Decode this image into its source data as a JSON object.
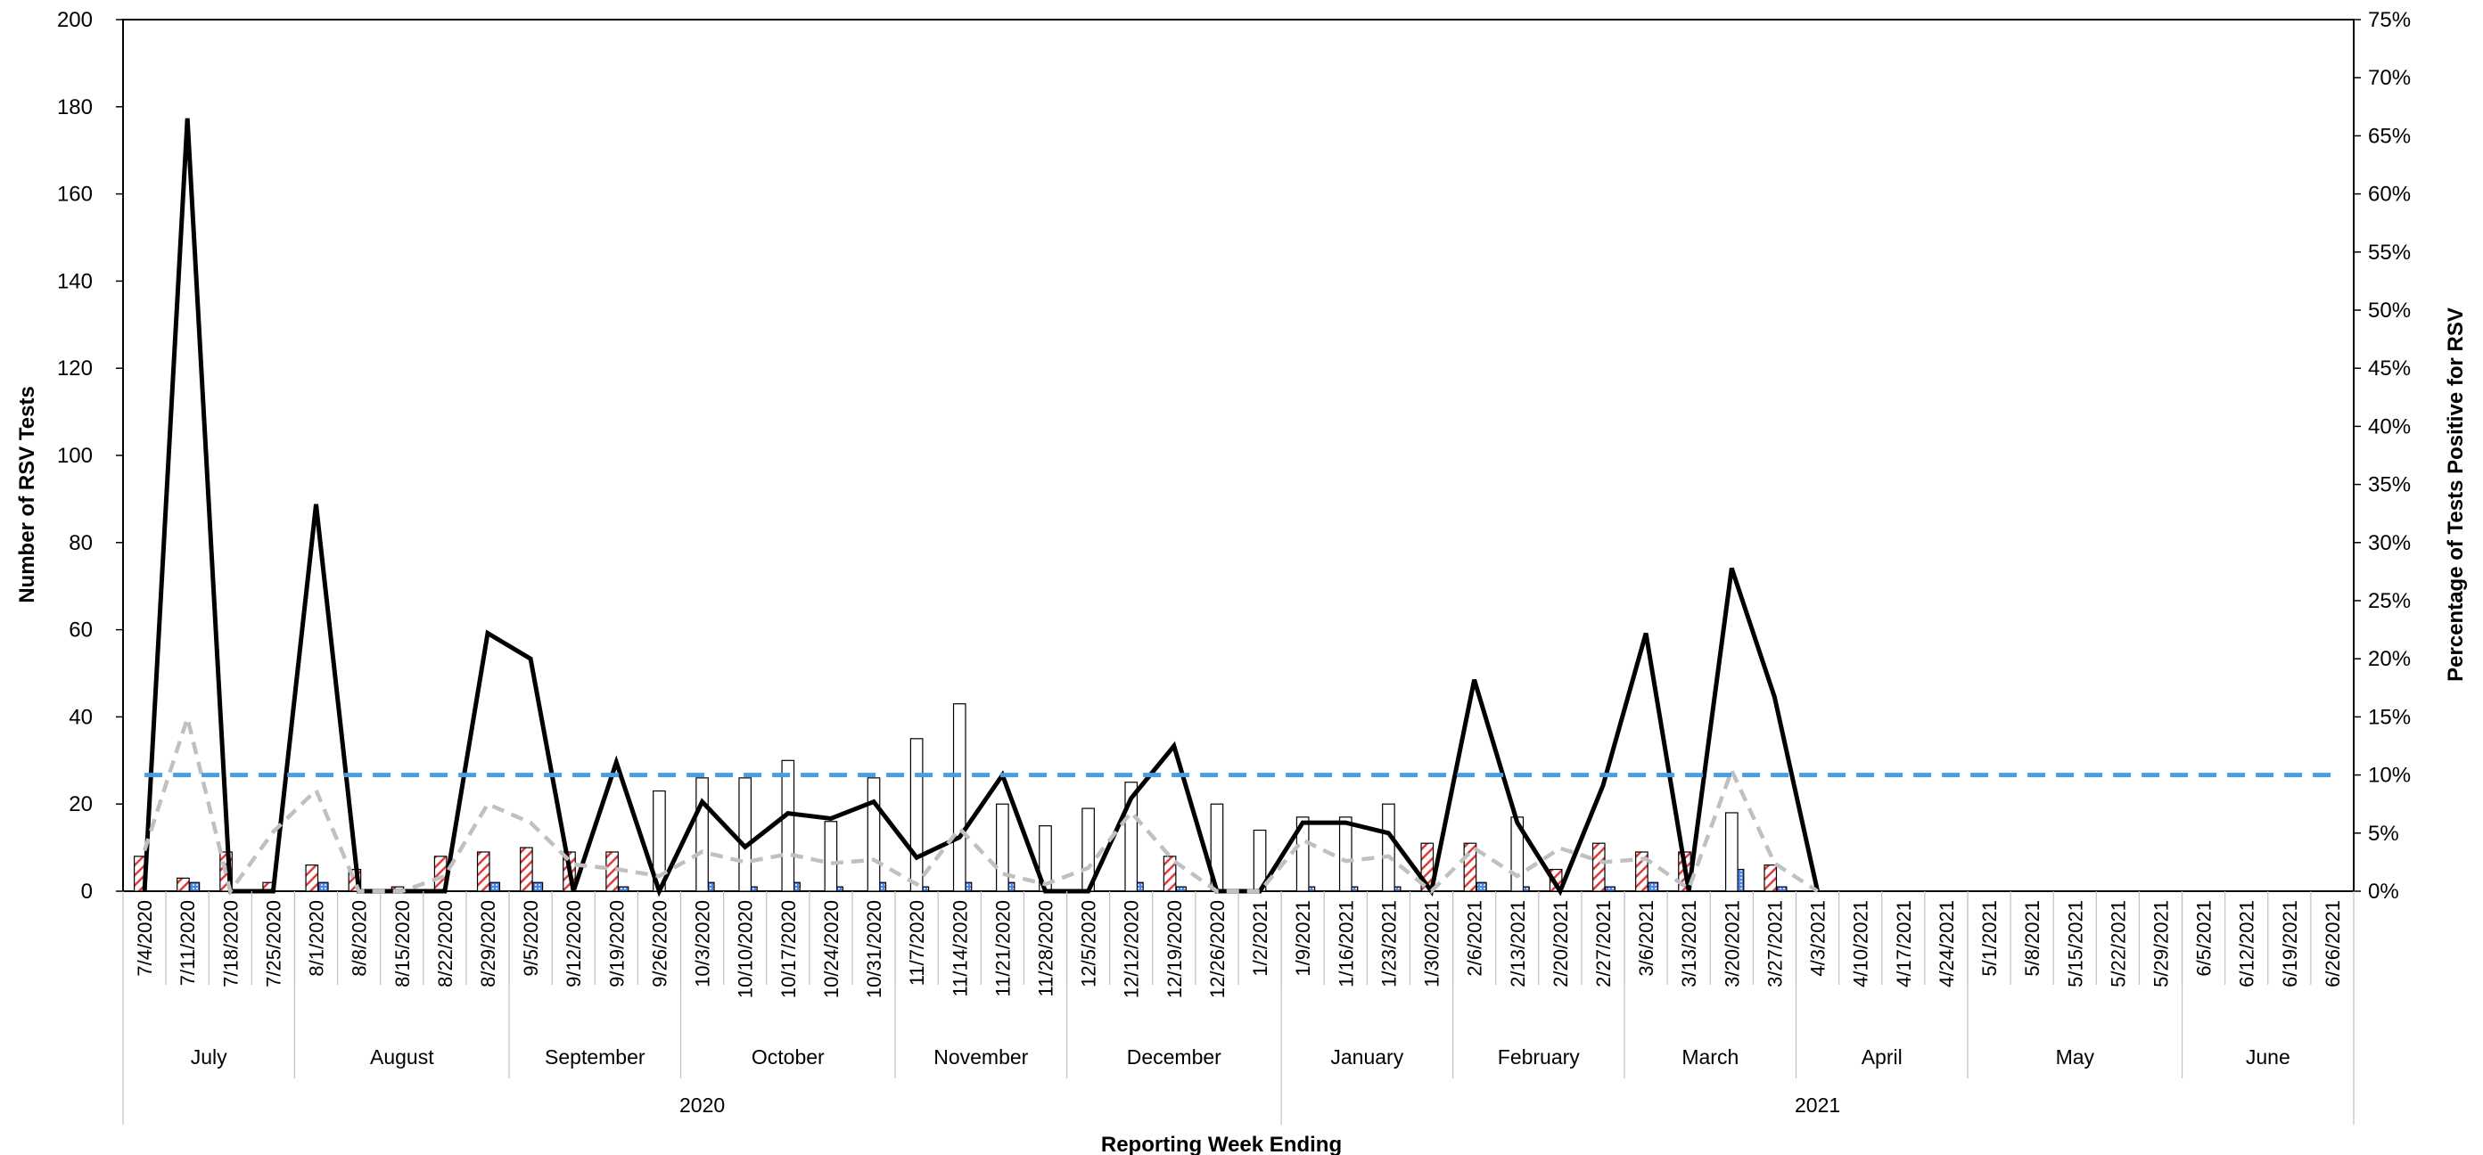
{
  "chart_data": {
    "type": "bar",
    "title": "",
    "xlabel": "Reporting Week Ending",
    "ylabel": "Number of RSV Tests",
    "y2label": "Percentage of Tests Positive for RSV",
    "ylim": [
      0,
      200
    ],
    "y2lim": [
      0,
      75
    ],
    "yticks": [
      "0",
      "20",
      "40",
      "60",
      "80",
      "100",
      "120",
      "140",
      "160",
      "180",
      "200"
    ],
    "y2ticks": [
      "0%",
      "5%",
      "10%",
      "15%",
      "20%",
      "25%",
      "30%",
      "35%",
      "40%",
      "45%",
      "50%",
      "55%",
      "60%",
      "65%",
      "70%",
      "75%"
    ],
    "grid": false,
    "categories": [
      "7/4/2020",
      "7/11/2020",
      "7/18/2020",
      "7/25/2020",
      "8/1/2020",
      "8/8/2020",
      "8/15/2020",
      "8/22/2020",
      "8/29/2020",
      "9/5/2020",
      "9/12/2020",
      "9/19/2020",
      "9/26/2020",
      "10/3/2020",
      "10/10/2020",
      "10/17/2020",
      "10/24/2020",
      "10/31/2020",
      "11/7/2020",
      "11/14/2020",
      "11/21/2020",
      "11/28/2020",
      "12/5/2020",
      "12/12/2020",
      "12/19/2020",
      "12/26/2020",
      "1/2/2021",
      "1/9/2021",
      "1/16/2021",
      "1/23/2021",
      "1/30/2021",
      "2/6/2021",
      "2/13/2021",
      "2/20/2021",
      "2/27/2021",
      "3/6/2021",
      "3/13/2021",
      "3/20/2021",
      "3/27/2021",
      "4/3/2021",
      "4/10/2021",
      "4/17/2021",
      "4/24/2021",
      "5/1/2021",
      "5/8/2021",
      "5/15/2021",
      "5/22/2021",
      "5/29/2021",
      "6/5/2021",
      "6/12/2021",
      "6/19/2021",
      "6/26/2021"
    ],
    "months": [
      {
        "label": "July",
        "start": 0,
        "end": 3
      },
      {
        "label": "August",
        "start": 4,
        "end": 8
      },
      {
        "label": "September",
        "start": 9,
        "end": 12
      },
      {
        "label": "October",
        "start": 13,
        "end": 17
      },
      {
        "label": "November",
        "start": 18,
        "end": 21
      },
      {
        "label": "December",
        "start": 22,
        "end": 26
      },
      {
        "label": "January",
        "start": 27,
        "end": 30
      },
      {
        "label": "February",
        "start": 31,
        "end": 34
      },
      {
        "label": "March",
        "start": 35,
        "end": 38
      },
      {
        "label": "April",
        "start": 39,
        "end": 42
      },
      {
        "label": "May",
        "start": 43,
        "end": 47
      },
      {
        "label": "June",
        "start": 48,
        "end": 51
      }
    ],
    "years": [
      {
        "label": "2020",
        "start": 0,
        "end": 26
      },
      {
        "label": "2021",
        "start": 27,
        "end": 51
      }
    ],
    "bar_series": [
      {
        "axis": "left",
        "fill": "hatched-red",
        "color": "#e03c3c",
        "values": [
          8,
          3,
          9,
          2,
          6,
          5,
          1,
          8,
          9,
          10,
          9,
          9,
          0,
          0,
          0,
          0,
          0,
          0,
          0,
          0,
          0,
          0,
          0,
          0,
          8,
          0,
          0,
          0,
          0,
          0,
          11,
          11,
          0,
          5,
          11,
          9,
          9,
          0,
          6,
          0,
          0,
          0,
          0,
          0,
          0,
          0,
          0,
          0,
          0,
          0,
          0,
          0
        ]
      },
      {
        "axis": "left",
        "fill": "dotted-blue",
        "color": "#4a86e8",
        "values": [
          0,
          2,
          0,
          0,
          2,
          0,
          0,
          0,
          2,
          2,
          0,
          1,
          0,
          2,
          1,
          2,
          1,
          2,
          1,
          2,
          2,
          0,
          0,
          2,
          1,
          0,
          0,
          1,
          1,
          1,
          0,
          2,
          1,
          0,
          1,
          2,
          0,
          5,
          1,
          0,
          0,
          0,
          0,
          0,
          0,
          0,
          0,
          0,
          0,
          0,
          0,
          0
        ]
      },
      {
        "axis": "left",
        "fill": "white",
        "color": "#000000",
        "values": [
          0,
          0,
          0,
          0,
          0,
          0,
          0,
          0,
          0,
          0,
          0,
          0,
          23,
          26,
          26,
          30,
          16,
          26,
          35,
          43,
          20,
          15,
          19,
          25,
          0,
          20,
          14,
          17,
          17,
          20,
          0,
          0,
          17,
          0,
          0,
          0,
          0,
          18,
          0,
          0,
          0,
          0,
          0,
          0,
          0,
          0,
          0,
          0,
          0,
          0,
          0,
          0
        ]
      }
    ],
    "line_series": [
      {
        "axis": "right",
        "style": "solid",
        "color": "#000000",
        "values": [
          0,
          66.5,
          0,
          0,
          33.3,
          0,
          0,
          0,
          22.2,
          20,
          0,
          11.1,
          0,
          7.7,
          3.8,
          6.7,
          6.25,
          7.7,
          2.9,
          4.65,
          10,
          0,
          0,
          8,
          12.5,
          0,
          0,
          5.9,
          5.9,
          5,
          0,
          18.2,
          5.9,
          0,
          9.1,
          22.2,
          0,
          27.8,
          16.7,
          0,
          null,
          null,
          null,
          null,
          null,
          null,
          null,
          null,
          null,
          null,
          null,
          null
        ]
      },
      {
        "axis": "right",
        "style": "dashed",
        "color": "#c0c0c0",
        "values": [
          3.5,
          14.9,
          0,
          5.1,
          8.7,
          0,
          0,
          1.3,
          7.5,
          5.9,
          2.3,
          1.9,
          1.3,
          3.4,
          2.5,
          3.2,
          2.4,
          2.7,
          0.6,
          5.4,
          1.5,
          0.6,
          2,
          6.8,
          2.6,
          0,
          0,
          4.4,
          2.6,
          3,
          0,
          3.7,
          1.3,
          3.7,
          2.5,
          2.8,
          0.2,
          10.4,
          2.4,
          0,
          null,
          null,
          null,
          null,
          null,
          null,
          null,
          null,
          null,
          null,
          null,
          null
        ]
      },
      {
        "axis": "right",
        "style": "dashed",
        "color": "#4a9ee0",
        "values": [
          10,
          10,
          10,
          10,
          10,
          10,
          10,
          10,
          10,
          10,
          10,
          10,
          10,
          10,
          10,
          10,
          10,
          10,
          10,
          10,
          10,
          10,
          10,
          10,
          10,
          10,
          10,
          10,
          10,
          10,
          10,
          10,
          10,
          10,
          10,
          10,
          10,
          10,
          10,
          10,
          10,
          10,
          10,
          10,
          10,
          10,
          10,
          10,
          10,
          10,
          10,
          10
        ]
      }
    ]
  }
}
